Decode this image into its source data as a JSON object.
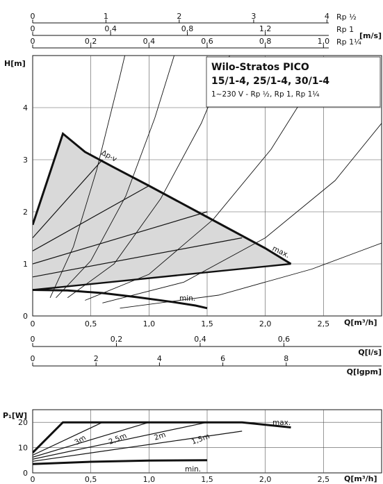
{
  "chart_data": [
    {
      "type": "line",
      "title": "Wilo-Stratos PICO",
      "title_line2": "15/1-4, 25/1-4, 30/1-4",
      "subtitle": "1~230 V - Rp ½, Rp 1, Rp 1¼",
      "xlabel": "Q[m³/h]",
      "ylabel": "H[m]",
      "xlim": [
        0,
        3.0
      ],
      "ylim": [
        0,
        5.0
      ],
      "x_ticks": [
        "0",
        "0,5",
        "1,0",
        "1,5",
        "2,0",
        "2,5"
      ],
      "x_tick_values": [
        0,
        0.5,
        1.0,
        1.5,
        2.0,
        2.5
      ],
      "y_ticks": [
        "0",
        "1",
        "2",
        "3",
        "4"
      ],
      "y_tick_values": [
        0,
        1,
        2,
        3,
        4
      ],
      "top_axes": [
        {
          "unit": "Rp ½",
          "ticks": [
            "0",
            "1",
            "2",
            "3",
            "4"
          ],
          "tick_values": [
            0,
            1,
            2,
            3,
            4
          ],
          "x_at_tick": [
            0,
            0.63,
            1.26,
            1.9,
            2.53
          ]
        },
        {
          "unit": "Rp 1",
          "extra_unit": "[m/s]",
          "ticks": [
            "0",
            "0,4",
            "0,8",
            "1,2"
          ],
          "tick_values": [
            0,
            0.4,
            0.8,
            1.2
          ],
          "x_at_tick": [
            0,
            0.67,
            1.33,
            2.0
          ]
        },
        {
          "unit": "Rp 1¼",
          "ticks": [
            "0",
            "0,2",
            "0,4",
            "0,6",
            "0,8",
            "1,0"
          ],
          "tick_values": [
            0,
            0.2,
            0.4,
            0.6,
            0.8,
            1.0
          ],
          "x_at_tick": [
            0,
            0.5,
            1.0,
            1.5,
            2.0,
            2.5
          ]
        }
      ],
      "bottom_axes": [
        {
          "unit": "Q[l/s]",
          "ticks": [
            "0",
            "0,2",
            "0,4",
            "0,6"
          ],
          "tick_values": [
            0,
            0.2,
            0.4,
            0.6
          ],
          "x_at_tick": [
            0,
            0.72,
            1.44,
            2.16
          ]
        },
        {
          "unit": "Q[lgpm]",
          "ticks": [
            "0",
            "2",
            "4",
            "6",
            "8"
          ],
          "tick_values": [
            0,
            2,
            4,
            6,
            8
          ],
          "x_at_tick": [
            0,
            0.545,
            1.09,
            1.635,
            2.18
          ]
        }
      ],
      "annotations": [
        "Δp-v",
        "max.",
        "min."
      ],
      "grid": true,
      "series": [
        {
          "name": "max.",
          "x": [
            0,
            0.26,
            0.45,
            0.7,
            1.0,
            1.5,
            2.0,
            2.22
          ],
          "y": [
            1.75,
            3.5,
            3.15,
            2.85,
            2.5,
            1.9,
            1.3,
            1.0
          ]
        },
        {
          "name": "min.",
          "x": [
            0,
            0.3,
            0.6,
            0.9,
            1.2,
            1.4,
            1.5
          ],
          "y": [
            0.5,
            0.49,
            0.44,
            0.36,
            0.27,
            0.2,
            0.15
          ]
        },
        {
          "name": "Δp-v",
          "x": [
            0,
            2.22
          ],
          "y": [
            0.5,
            1.0
          ]
        },
        {
          "x": [
            0,
            0.6
          ],
          "y": [
            1.5,
            3.0
          ]
        },
        {
          "x": [
            0,
            1.0
          ],
          "y": [
            1.25,
            2.5
          ]
        },
        {
          "x": [
            0,
            1.5
          ],
          "y": [
            1.0,
            2.0
          ]
        },
        {
          "x": [
            0,
            1.8
          ],
          "y": [
            0.75,
            1.5
          ]
        }
      ],
      "system_curves": [
        {
          "x": [
            0.15,
            0.35,
            0.55,
            0.75,
            0.92
          ],
          "y": [
            0.35,
            1.33,
            2.8,
            4.6,
            6.2
          ]
        },
        {
          "x": [
            0.2,
            0.5,
            0.8,
            1.05,
            1.3
          ],
          "y": [
            0.35,
            1.06,
            2.3,
            3.8,
            5.6
          ]
        },
        {
          "x": [
            0.3,
            0.7,
            1.1,
            1.45,
            1.75
          ],
          "y": [
            0.35,
            1.0,
            2.25,
            3.7,
            5.3
          ]
        },
        {
          "x": [
            0.45,
            1.0,
            1.55,
            2.05,
            2.5
          ],
          "y": [
            0.3,
            0.8,
            1.85,
            3.2,
            4.8
          ]
        },
        {
          "x": [
            0.6,
            1.3,
            2.0,
            2.6,
            3.0
          ],
          "y": [
            0.25,
            0.65,
            1.5,
            2.6,
            3.7
          ]
        },
        {
          "x": [
            0.75,
            1.6,
            2.4,
            3.0
          ],
          "y": [
            0.15,
            0.4,
            0.9,
            1.4
          ]
        }
      ]
    },
    {
      "type": "line",
      "xlabel": "Q[m³/h]",
      "ylabel": "P₁[W]",
      "xlim": [
        0,
        3.0
      ],
      "ylim": [
        0,
        25
      ],
      "x_ticks": [
        "0",
        "0,5",
        "1,0",
        "1,5",
        "2,0",
        "2,5"
      ],
      "x_tick_values": [
        0,
        0.5,
        1.0,
        1.5,
        2.0,
        2.5
      ],
      "y_ticks": [
        "0",
        "10",
        "20"
      ],
      "y_tick_values": [
        0,
        10,
        20
      ],
      "grid": true,
      "curve_labels": [
        "3m",
        "2,5m",
        "2m",
        "1,5m",
        "max.",
        "min."
      ],
      "series": [
        {
          "name": "max.",
          "x": [
            0,
            0.26,
            1.8,
            2.22
          ],
          "y": [
            8,
            20,
            20,
            18
          ]
        },
        {
          "name": "min.",
          "x": [
            0,
            0.5,
            1.0,
            1.5
          ],
          "y": [
            3.5,
            4.4,
            4.9,
            5.0
          ]
        },
        {
          "name": "3m",
          "x": [
            0,
            0.6
          ],
          "y": [
            7,
            20
          ]
        },
        {
          "name": "2,5m",
          "x": [
            0,
            1.0
          ],
          "y": [
            6.2,
            20
          ]
        },
        {
          "name": "2m",
          "x": [
            0,
            1.5
          ],
          "y": [
            5.4,
            20
          ]
        },
        {
          "name": "1,5m",
          "x": [
            0,
            1.8
          ],
          "y": [
            4.6,
            16.5
          ]
        }
      ]
    }
  ]
}
